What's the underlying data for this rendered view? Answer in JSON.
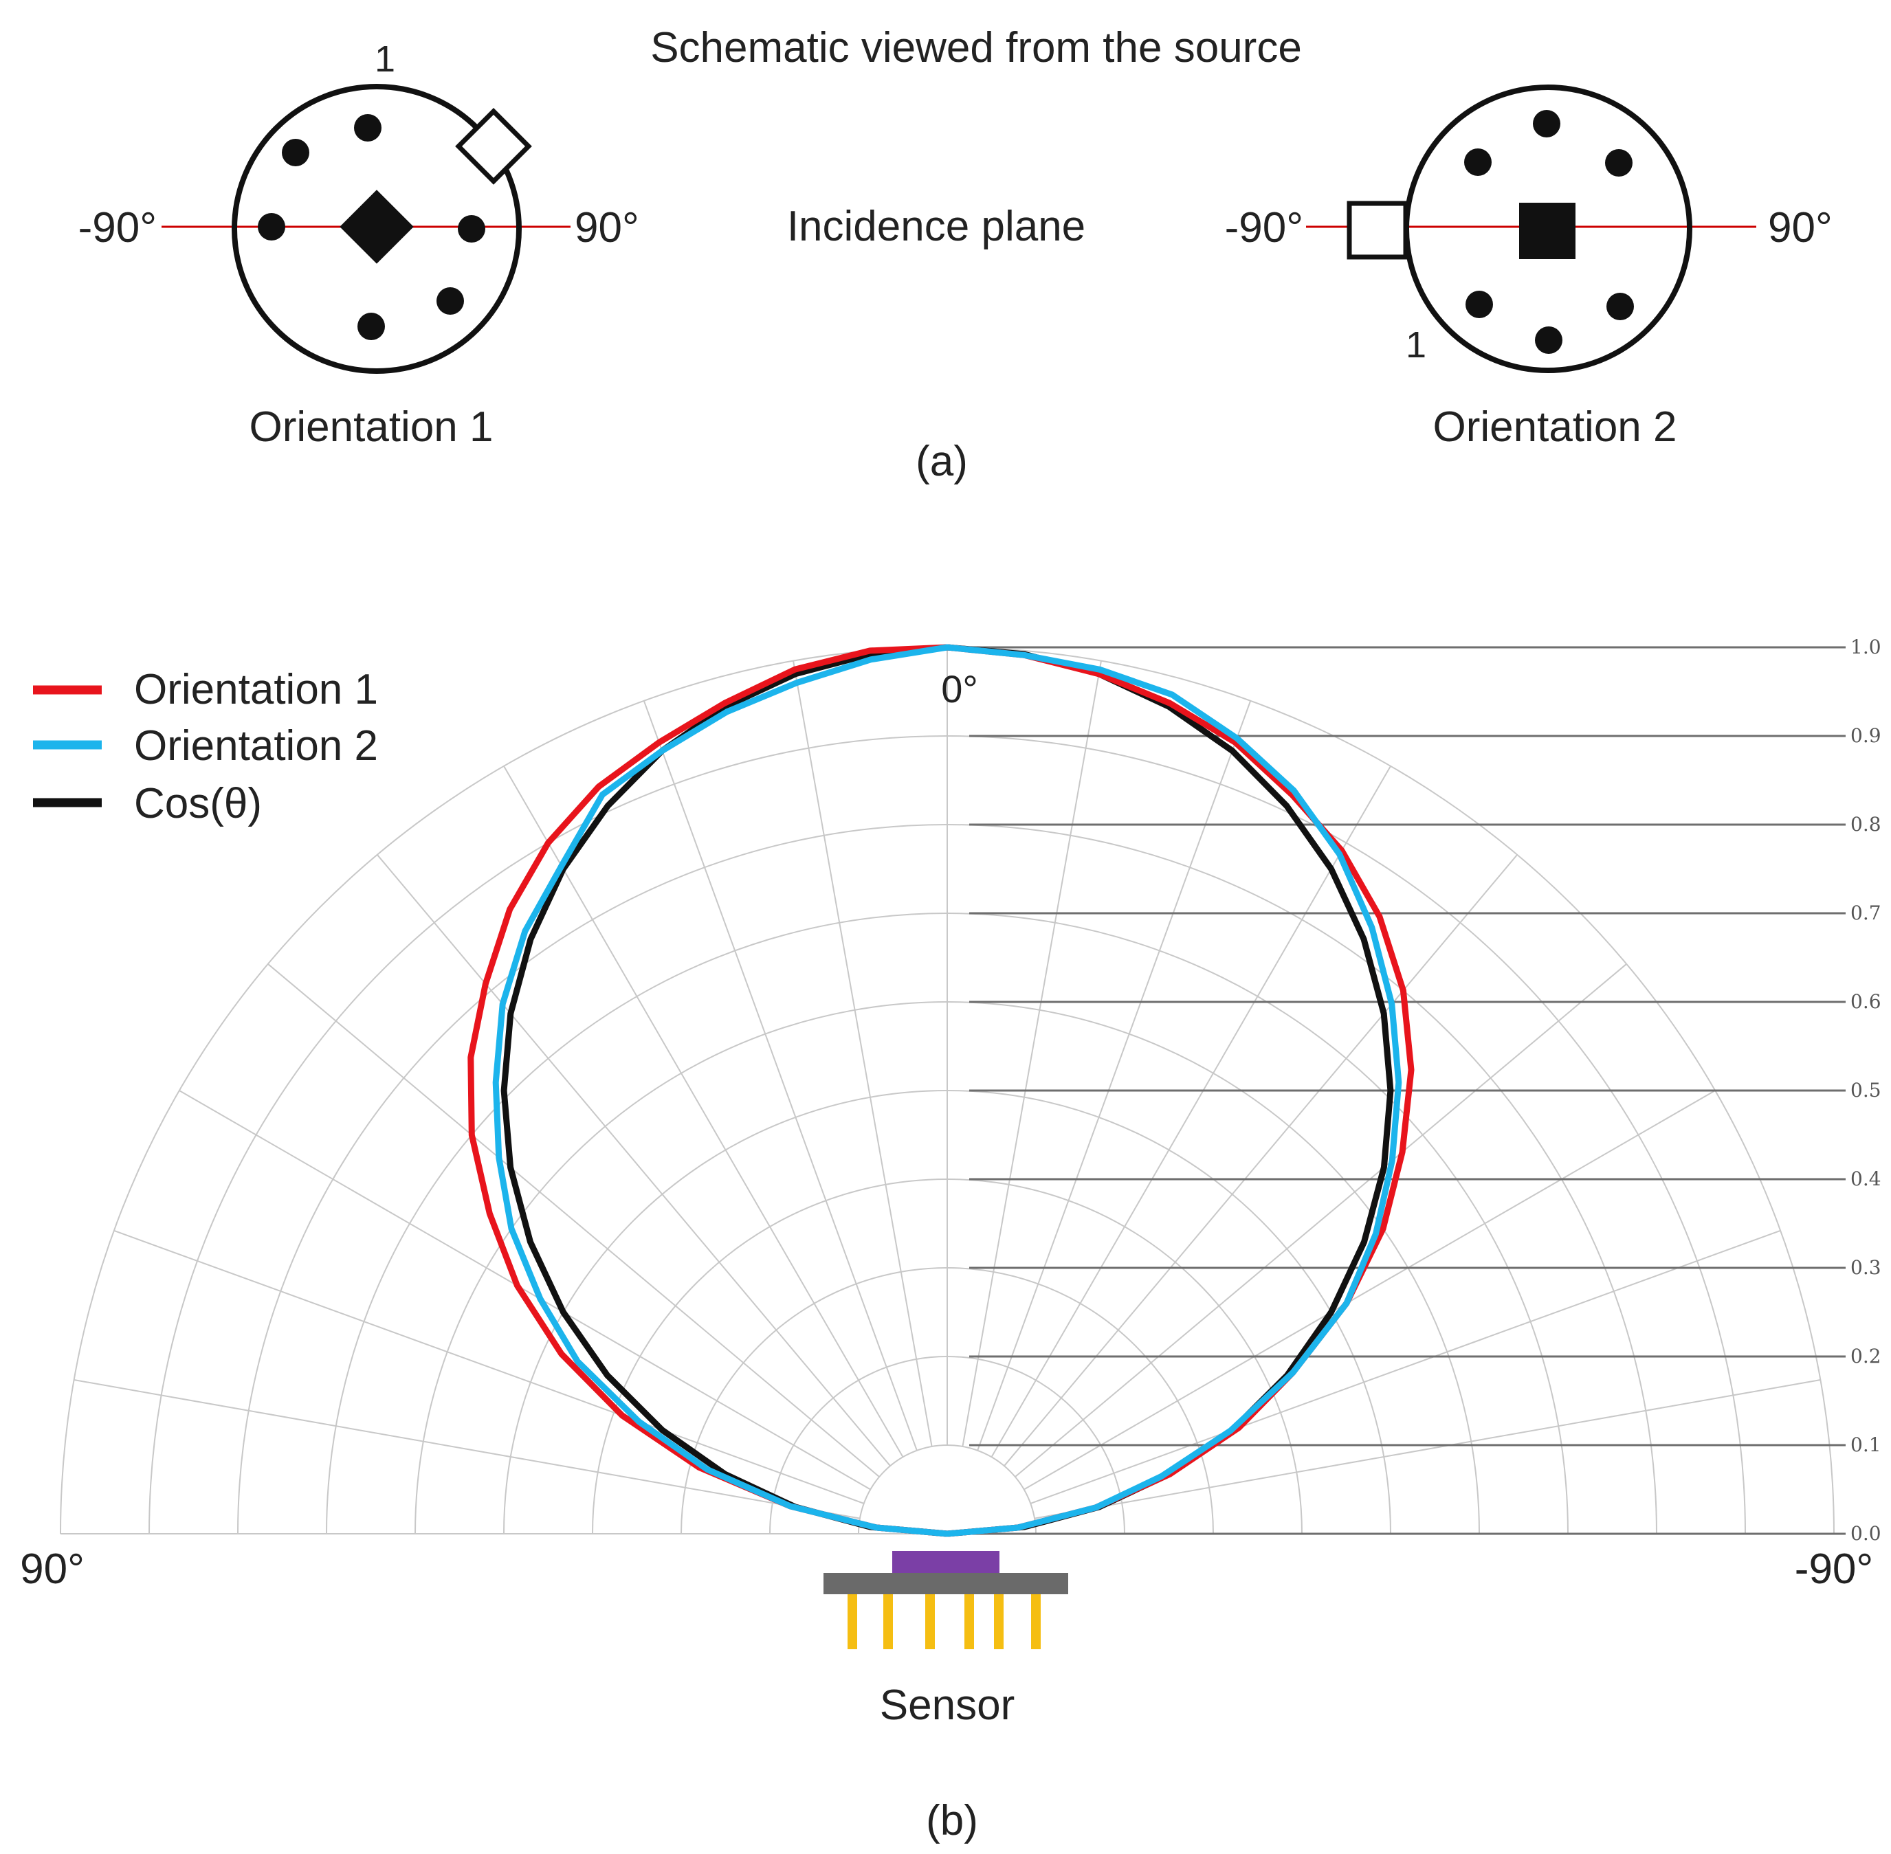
{
  "panel_a": {
    "title": "Schematic viewed from the source",
    "incidence_plane_label": "Incidence plane",
    "panel_label": "(a)",
    "orientation_1": {
      "name": "Orientation 1",
      "left_angle": "-90°",
      "right_angle": "90°",
      "pin_label": "1"
    },
    "orientation_2": {
      "name": "Orientation 2",
      "left_angle": "-90°",
      "right_angle": "90°",
      "pin_label": "1"
    }
  },
  "panel_b": {
    "panel_label": "(b)",
    "sensor_label": "Sensor"
  },
  "colors": {
    "orientation_1": "#e8141c",
    "orientation_2": "#1cb4ec",
    "cos": "#111111",
    "grid": "#c8c8c8",
    "incidence_line": "#cc0000",
    "sensor_chip": "#7b3fa6",
    "sensor_board": "#6a6a6a",
    "sensor_pins": "#f5be12"
  },
  "chart_data": {
    "type": "polar",
    "angular_unit": "degrees",
    "angle_range": [
      90,
      -90
    ],
    "zero_label": "0°",
    "left_end_label": "90°",
    "right_end_label": "-90°",
    "radial_range": [
      0,
      1.0
    ],
    "radial_ticks": [
      "0.0",
      "0.1",
      "0.2",
      "0.3",
      "0.4",
      "0.5",
      "0.6",
      "0.7",
      "0.8",
      "0.9",
      "1.0"
    ],
    "angular_grid_step_deg": 10,
    "legend": [
      {
        "label": "Orientation 1",
        "color_key": "orientation_1"
      },
      {
        "label": "Orientation 2",
        "color_key": "orientation_2"
      },
      {
        "label": "Cos(θ)",
        "color_key": "cos"
      }
    ],
    "series": [
      {
        "name": "Orientation 1",
        "color_key": "orientation_1",
        "theta": [
          90,
          85,
          80,
          75,
          70,
          65,
          60,
          55,
          50,
          45,
          40,
          35,
          30,
          25,
          20,
          15,
          10,
          5,
          0,
          -5,
          -10,
          -15,
          -20,
          -25,
          -30,
          -35,
          -40,
          -45,
          -50,
          -55,
          -60,
          -65,
          -70,
          -75,
          -80,
          -85,
          -90
        ],
        "r": [
          0.0,
          0.08,
          0.18,
          0.29,
          0.39,
          0.48,
          0.56,
          0.63,
          0.7,
          0.76,
          0.81,
          0.86,
          0.9,
          0.93,
          0.95,
          0.97,
          0.99,
          1.0,
          1.0,
          0.995,
          0.985,
          0.97,
          0.95,
          0.92,
          0.89,
          0.85,
          0.8,
          0.74,
          0.67,
          0.6,
          0.52,
          0.43,
          0.35,
          0.26,
          0.17,
          0.08,
          0.0
        ]
      },
      {
        "name": "Orientation 2",
        "color_key": "orientation_2",
        "theta": [
          90,
          85,
          80,
          75,
          70,
          65,
          60,
          55,
          50,
          45,
          40,
          35,
          30,
          25,
          20,
          15,
          10,
          5,
          0,
          -5,
          -10,
          -15,
          -20,
          -25,
          -30,
          -35,
          -40,
          -45,
          -50,
          -55,
          -60,
          -65,
          -70,
          -75,
          -80,
          -85,
          -90
        ],
        "r": [
          0.0,
          0.08,
          0.18,
          0.28,
          0.37,
          0.46,
          0.53,
          0.6,
          0.66,
          0.72,
          0.78,
          0.83,
          0.87,
          0.92,
          0.94,
          0.96,
          0.975,
          0.99,
          1.0,
          0.995,
          0.99,
          0.98,
          0.955,
          0.925,
          0.885,
          0.835,
          0.78,
          0.72,
          0.655,
          0.59,
          0.52,
          0.43,
          0.34,
          0.25,
          0.17,
          0.08,
          0.0
        ]
      },
      {
        "name": "Cos(θ)",
        "color_key": "cos",
        "theta": [
          90,
          85,
          80,
          75,
          70,
          65,
          60,
          55,
          50,
          45,
          40,
          35,
          30,
          25,
          20,
          15,
          10,
          5,
          0,
          -5,
          -10,
          -15,
          -20,
          -25,
          -30,
          -35,
          -40,
          -45,
          -50,
          -55,
          -60,
          -65,
          -70,
          -75,
          -80,
          -85,
          -90
        ],
        "r": [
          0.0,
          0.087,
          0.174,
          0.259,
          0.342,
          0.423,
          0.5,
          0.574,
          0.643,
          0.707,
          0.766,
          0.819,
          0.866,
          0.906,
          0.94,
          0.966,
          0.985,
          0.996,
          1.0,
          0.996,
          0.985,
          0.966,
          0.94,
          0.906,
          0.866,
          0.819,
          0.766,
          0.707,
          0.643,
          0.574,
          0.5,
          0.423,
          0.342,
          0.259,
          0.174,
          0.087,
          0.0
        ]
      }
    ]
  }
}
